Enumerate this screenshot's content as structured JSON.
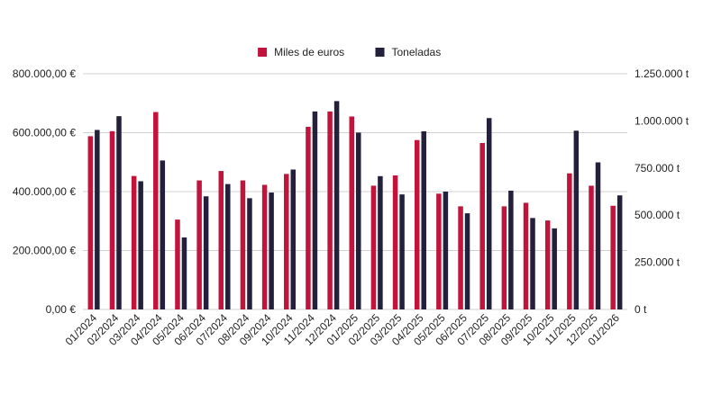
{
  "chart_data": {
    "type": "bar",
    "legend": {
      "position": "top-center",
      "entries": [
        "Miles de euros",
        "Toneladas"
      ]
    },
    "categories": [
      "01/2024",
      "02/2024",
      "03/2024",
      "04/2024",
      "05/2024",
      "06/2024",
      "07/2024",
      "08/2024",
      "09/2024",
      "10/2024",
      "11/2024",
      "12/2024",
      "01/2025",
      "02/2025",
      "03/2025",
      "04/2025",
      "05/2025",
      "06/2025",
      "07/2025",
      "08/2025",
      "09/2025",
      "10/2025",
      "11/2025",
      "12/2025",
      "01/2026"
    ],
    "series": [
      {
        "name": "Miles de euros",
        "axis": "left",
        "color": "#c0143c",
        "values": [
          588000,
          605000,
          453000,
          670000,
          305000,
          438000,
          470000,
          438000,
          423000,
          460000,
          620000,
          672000,
          655000,
          420000,
          455000,
          575000,
          393000,
          350000,
          565000,
          350000,
          362000,
          302000,
          462000,
          420000,
          352000
        ]
      },
      {
        "name": "Toneladas",
        "axis": "right",
        "color": "#22203a",
        "values": [
          952000,
          1025000,
          680000,
          790000,
          382000,
          600000,
          665000,
          590000,
          620000,
          742000,
          1050000,
          1105000,
          938000,
          707000,
          610000,
          945000,
          625000,
          510000,
          1015000,
          630000,
          485000,
          430000,
          948000,
          780000,
          605000
        ]
      }
    ],
    "y_left": {
      "min": 0,
      "max": 800000,
      "ticks": [
        0,
        200000,
        400000,
        600000,
        800000
      ],
      "tick_labels": [
        "0,00 €",
        "200.000,00 €",
        "400.000,00 €",
        "600.000,00 €",
        "800.000,00 €"
      ]
    },
    "y_right": {
      "min": 0,
      "max": 1250000,
      "ticks": [
        0,
        250000,
        500000,
        750000,
        1000000,
        1250000
      ],
      "tick_labels": [
        "0 t",
        "250.000 t",
        "500.000 t",
        "750.000 t",
        "1.000.000 t",
        "1.250.000 t"
      ]
    },
    "grid": true
  }
}
